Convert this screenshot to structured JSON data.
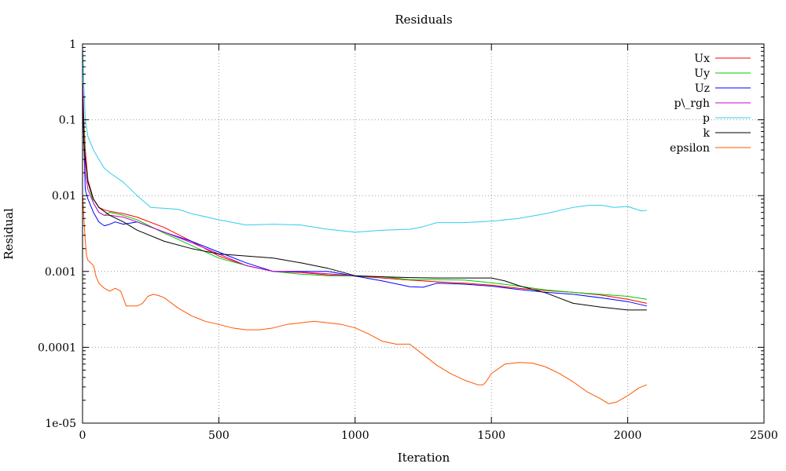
{
  "chart_data": {
    "type": "line",
    "title": "Residuals",
    "xlabel": "Iteration",
    "ylabel": "Residual",
    "xlim": [
      0,
      2500
    ],
    "ylim": [
      1e-05,
      1
    ],
    "yscale": "log",
    "grid": true,
    "legend_position": "top-right",
    "x_ticks": [
      0,
      500,
      1000,
      1500,
      2000,
      2500
    ],
    "x_tick_labels": [
      "0",
      "500",
      "1000",
      "1500",
      "2000",
      "2500"
    ],
    "y_ticks": [
      1,
      0.1,
      0.01,
      0.001,
      0.0001,
      1e-05
    ],
    "y_tick_labels": [
      "1",
      "0.1",
      "0.01",
      "0.001",
      "0.0001",
      "1e-05"
    ],
    "series": [
      {
        "name": "Ux",
        "color": "#ff0000",
        "x": [
          1,
          5,
          10,
          20,
          40,
          60,
          80,
          100,
          150,
          200,
          300,
          400,
          500,
          600,
          700,
          800,
          900,
          1000,
          1100,
          1200,
          1300,
          1400,
          1500,
          1600,
          1700,
          1800,
          1900,
          2000,
          2070
        ],
        "y": [
          0.3,
          0.1,
          0.04,
          0.016,
          0.009,
          0.007,
          0.0065,
          0.0062,
          0.0058,
          0.0052,
          0.0038,
          0.0025,
          0.0016,
          0.0012,
          0.001,
          0.00097,
          0.0009,
          0.00087,
          0.00082,
          0.00077,
          0.00073,
          0.0007,
          0.00066,
          0.0006,
          0.00056,
          0.00053,
          0.00049,
          0.00043,
          0.00038
        ]
      },
      {
        "name": "Uy",
        "color": "#00cc00",
        "x": [
          1,
          5,
          10,
          20,
          40,
          60,
          80,
          100,
          150,
          200,
          300,
          400,
          500,
          600,
          700,
          800,
          900,
          1000,
          1100,
          1200,
          1300,
          1400,
          1500,
          1600,
          1700,
          1800,
          1900,
          2000,
          2070
        ],
        "y": [
          0.2,
          0.08,
          0.03,
          0.015,
          0.008,
          0.006,
          0.0055,
          0.006,
          0.0055,
          0.0048,
          0.0032,
          0.0022,
          0.0015,
          0.0012,
          0.001,
          0.00092,
          0.00088,
          0.00087,
          0.00085,
          0.00078,
          0.00078,
          0.00077,
          0.00071,
          0.00064,
          0.00057,
          0.00053,
          0.0005,
          0.00047,
          0.00043
        ]
      },
      {
        "name": "Uz",
        "color": "#0000ff",
        "x": [
          1,
          5,
          10,
          20,
          40,
          60,
          80,
          100,
          120,
          150,
          200,
          300,
          400,
          500,
          600,
          700,
          800,
          900,
          1000,
          1100,
          1200,
          1250,
          1300,
          1400,
          1500,
          1600,
          1700,
          1800,
          1900,
          2000,
          2070
        ],
        "y": [
          0.3,
          0.05,
          0.012,
          0.009,
          0.006,
          0.0045,
          0.004,
          0.0042,
          0.0045,
          0.0042,
          0.0045,
          0.0033,
          0.0025,
          0.0018,
          0.0013,
          0.001,
          0.001,
          0.001,
          0.00087,
          0.00075,
          0.00063,
          0.00062,
          0.0007,
          0.00068,
          0.00064,
          0.00058,
          0.00053,
          0.0005,
          0.00045,
          0.0004,
          0.00035
        ]
      },
      {
        "name": "p\\_rgh",
        "color": "#cc00cc",
        "x": [
          1,
          5,
          10,
          20,
          40,
          60,
          80,
          100,
          150,
          200,
          300,
          400,
          500,
          600,
          700,
          800,
          900,
          1000
        ],
        "y": [
          0.3,
          0.06,
          0.02,
          0.012,
          0.008,
          0.006,
          0.0055,
          0.0055,
          0.0052,
          0.0045,
          0.0033,
          0.0024,
          0.0017,
          0.0012,
          0.001,
          0.00098,
          0.00093,
          0.00088
        ]
      },
      {
        "name": "p",
        "color": "#33ccee",
        "x": [
          1,
          5,
          10,
          20,
          40,
          60,
          80,
          100,
          150,
          200,
          250,
          300,
          350,
          400,
          500,
          600,
          700,
          800,
          900,
          1000,
          1100,
          1200,
          1250,
          1300,
          1400,
          1500,
          1600,
          1700,
          1800,
          1850,
          1900,
          1950,
          2000,
          2050,
          2070
        ],
        "y": [
          0.8,
          0.3,
          0.1,
          0.06,
          0.04,
          0.03,
          0.023,
          0.02,
          0.015,
          0.01,
          0.007,
          0.0068,
          0.0066,
          0.0058,
          0.0048,
          0.0041,
          0.0042,
          0.0041,
          0.0036,
          0.0033,
          0.0035,
          0.0036,
          0.0039,
          0.0044,
          0.0044,
          0.0046,
          0.005,
          0.0058,
          0.007,
          0.0074,
          0.0075,
          0.007,
          0.0072,
          0.0063,
          0.0064
        ]
      },
      {
        "name": "k",
        "color": "#000000",
        "x": [
          1,
          5,
          10,
          20,
          40,
          60,
          80,
          100,
          150,
          200,
          300,
          400,
          500,
          600,
          700,
          800,
          900,
          1000,
          1100,
          1200,
          1300,
          1400,
          1500,
          1550,
          1600,
          1700,
          1800,
          1900,
          2000,
          2070
        ],
        "y": [
          0.2,
          0.05,
          0.03,
          0.015,
          0.009,
          0.007,
          0.0062,
          0.0055,
          0.0045,
          0.0035,
          0.0025,
          0.002,
          0.0017,
          0.0016,
          0.0015,
          0.0013,
          0.0011,
          0.00088,
          0.00085,
          0.00083,
          0.00082,
          0.00082,
          0.00082,
          0.00075,
          0.00065,
          0.00052,
          0.00038,
          0.00034,
          0.00031,
          0.00031
        ]
      },
      {
        "name": "epsilon",
        "color": "#ff5500",
        "x": [
          1,
          5,
          10,
          15,
          20,
          30,
          40,
          50,
          60,
          80,
          100,
          120,
          140,
          160,
          180,
          200,
          220,
          240,
          260,
          280,
          300,
          350,
          400,
          450,
          500,
          550,
          600,
          650,
          700,
          750,
          800,
          850,
          900,
          950,
          1000,
          1050,
          1100,
          1150,
          1200,
          1250,
          1300,
          1350,
          1400,
          1450,
          1470,
          1480,
          1500,
          1550,
          1600,
          1650,
          1700,
          1750,
          1800,
          1850,
          1900,
          1930,
          1960,
          2000,
          2040,
          2070
        ],
        "y": [
          0.01,
          0.005,
          0.0025,
          0.0016,
          0.0014,
          0.0013,
          0.0012,
          0.00085,
          0.0007,
          0.0006,
          0.00055,
          0.0006,
          0.00055,
          0.00035,
          0.00035,
          0.00035,
          0.00038,
          0.00047,
          0.0005,
          0.00048,
          0.00045,
          0.00033,
          0.00026,
          0.00022,
          0.0002,
          0.00018,
          0.00017,
          0.00017,
          0.00018,
          0.0002,
          0.00021,
          0.00022,
          0.00021,
          0.0002,
          0.00018,
          0.00015,
          0.00012,
          0.00011,
          0.00011,
          8e-05,
          5.8e-05,
          4.5e-05,
          3.7e-05,
          3.2e-05,
          3.2e-05,
          3.5e-05,
          4.5e-05,
          6e-05,
          6.3e-05,
          6.2e-05,
          5.5e-05,
          4.5e-05,
          3.5e-05,
          2.6e-05,
          2.1e-05,
          1.8e-05,
          1.9e-05,
          2.3e-05,
          2.9e-05,
          3.2e-05
        ]
      }
    ]
  }
}
